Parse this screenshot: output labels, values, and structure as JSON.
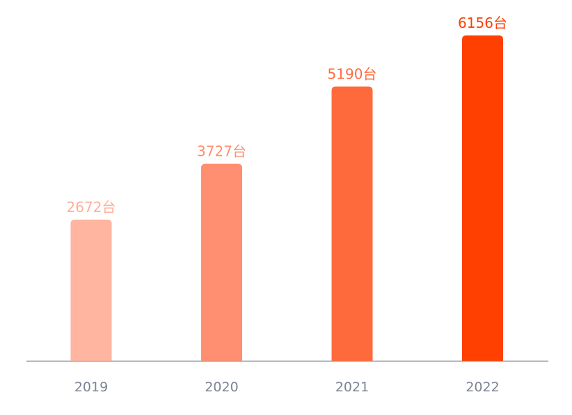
{
  "chart_data": {
    "type": "bar",
    "categories": [
      "2019",
      "2020",
      "2021",
      "2022"
    ],
    "values": [
      2672,
      3727,
      5190,
      6156
    ],
    "data_labels": [
      "2672台",
      "3727台",
      "5190台",
      "6156台"
    ],
    "title": "",
    "xlabel": "",
    "ylabel": "",
    "ylim": [
      0,
      6156
    ],
    "grid": false,
    "legend": "none",
    "colors": [
      "#ffb59f",
      "#ff8f70",
      "#ff6a3d",
      "#ff4000"
    ],
    "label_colors": [
      "#ffb09a",
      "#ff8e6e",
      "#ff6a3d",
      "#ff4000"
    ],
    "axis_color": "#8a8fa0"
  }
}
